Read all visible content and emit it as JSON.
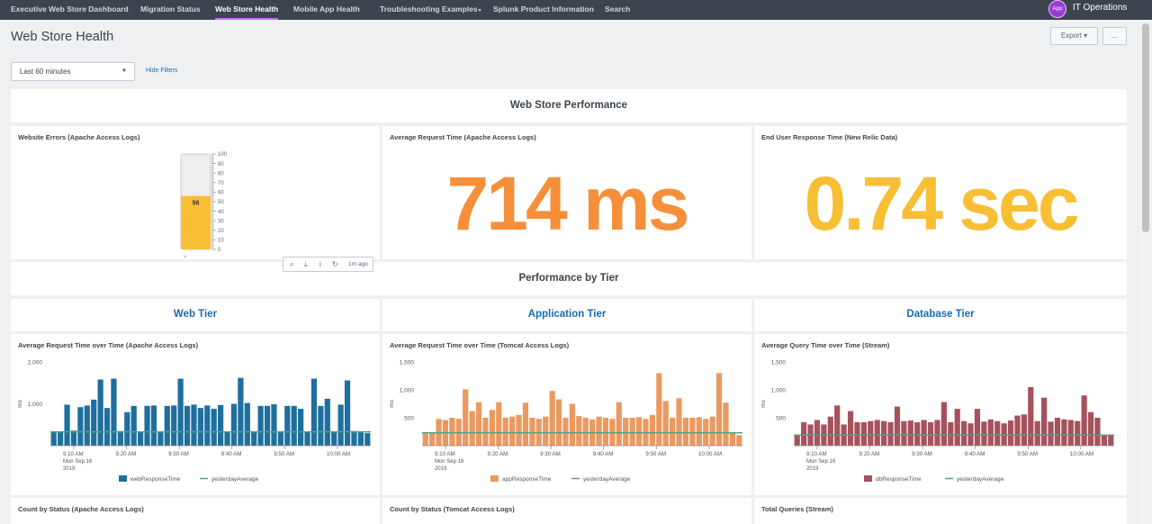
{
  "nav": {
    "items": [
      {
        "label": "Executive Web Store Dashboard",
        "caret": ""
      },
      {
        "label": "Migration Status",
        "caret": ""
      },
      {
        "label": "Web Store Health",
        "caret": ""
      },
      {
        "label": "Mobile App Health",
        "caret": ""
      },
      {
        "label": "Troubleshooting Examples",
        "caret": "▾"
      },
      {
        "label": "Splunk Product Information",
        "caret": ""
      },
      {
        "label": "Search",
        "caret": ""
      }
    ],
    "active_index": 2,
    "app_badge": "App",
    "app_name": "IT Operations"
  },
  "header": {
    "title": "Web Store Health",
    "export_label": "Export ▾",
    "more_label": "..."
  },
  "filters": {
    "time_range": "Last 60 minutes",
    "hide_filters": "Hide Filters"
  },
  "sections": {
    "performance": "Web Store Performance",
    "by_tier": "Performance by Tier"
  },
  "panels": {
    "website_errors": {
      "title": "Website Errors (Apache Access Logs)",
      "value": "56",
      "gauge_value": 56,
      "gauge_max": 100,
      "ticks": [
        "100",
        "90",
        "80",
        "70",
        "60",
        "50",
        "40",
        "30",
        "20",
        "10",
        "0"
      ],
      "fill_color": "#f8be34"
    },
    "avg_request_time": {
      "title": "Average Request Time (Apache Access Logs)",
      "value": "714 ms",
      "color": "#f58f39"
    },
    "end_user_response": {
      "title": "End User Response Time (New Relic Data)",
      "value": "0.74 sec",
      "color": "#f8be34"
    },
    "toolbar": {
      "icons": [
        "search-icon",
        "export-icon",
        "info-icon",
        "refresh-icon"
      ],
      "ago": "1m ago"
    },
    "counts": {
      "web": "Count by Status (Apache Access Logs)",
      "app": "Count by Status (Tomcat Access Logs)",
      "db": "Total Queries (Stream)"
    }
  },
  "tiers": {
    "web": "Web Tier",
    "app": "Application Tier",
    "db": "Database Tier"
  },
  "chart_data": [
    {
      "type": "bar",
      "title": "Average Request Time over Time (Apache Access Logs)",
      "ylabel": "ms",
      "ylim": [
        0,
        2000
      ],
      "yticks": [
        "1,000",
        "2,000"
      ],
      "ytick_values": [
        1000,
        2000
      ],
      "xticks": [
        "9:10 AM",
        "9:20 AM",
        "9:30 AM",
        "9:40 AM",
        "9:50 AM",
        "10:00 AM"
      ],
      "xtick_sub": [
        "Mon Sep 16",
        "2019"
      ],
      "bar_color": "#1e6f9f",
      "line_color": "#4fa484",
      "series_name": "webResponseTime",
      "line_name": "yesterdayAverage",
      "line_value": 330,
      "values": [
        340,
        330,
        980,
        360,
        920,
        960,
        1100,
        1580,
        900,
        1600,
        350,
        800,
        950,
        330,
        950,
        960,
        330,
        950,
        960,
        1600,
        950,
        980,
        900,
        960,
        880,
        970,
        330,
        1000,
        1620,
        1020,
        330,
        950,
        950,
        990,
        330,
        950,
        950,
        880,
        330,
        1600,
        950,
        1120,
        330,
        980,
        1560,
        350,
        320,
        300
      ]
    },
    {
      "type": "bar",
      "title": "Average Request Time over Time (Tomcat Access Logs)",
      "ylabel": "ms",
      "ylim": [
        0,
        1500
      ],
      "yticks": [
        "500",
        "1,000",
        "1,500"
      ],
      "ytick_values": [
        500,
        1000,
        1500
      ],
      "xticks": [
        "9:10 AM",
        "9:20 AM",
        "9:30 AM",
        "9:40 AM",
        "9:50 AM",
        "10:00 AM"
      ],
      "xtick_sub": [
        "Mon Sep 16",
        "2019"
      ],
      "bar_color": "#ec9960",
      "line_color": "#4fa484",
      "series_name": "appResponseTime",
      "line_name": "yesterdayAverage",
      "line_value": 230,
      "values": [
        230,
        240,
        480,
        460,
        500,
        480,
        1010,
        620,
        780,
        500,
        640,
        780,
        500,
        520,
        550,
        770,
        500,
        480,
        520,
        980,
        830,
        500,
        750,
        530,
        500,
        470,
        520,
        500,
        480,
        780,
        500,
        500,
        510,
        480,
        550,
        1300,
        800,
        500,
        850,
        500,
        500,
        510,
        480,
        520,
        1300,
        770,
        220,
        190
      ]
    },
    {
      "type": "bar",
      "title": "Average Query Time over Time (Stream)",
      "ylabel": "ms",
      "ylim": [
        0,
        1500
      ],
      "yticks": [
        "500",
        "1,000",
        "1,500"
      ],
      "ytick_values": [
        500,
        1000,
        1500
      ],
      "xticks": [
        "9:10 AM",
        "9:20 AM",
        "9:30 AM",
        "9:40 AM",
        "9:50 AM",
        "10:00 AM"
      ],
      "xtick_sub": [
        "Mon Sep 16",
        "2019"
      ],
      "bar_color": "#a6525c",
      "line_color": "#4fa484",
      "series_name": "dbResponseTime",
      "line_name": "yesterdayAverage",
      "line_value": 190,
      "values": [
        200,
        420,
        380,
        460,
        380,
        520,
        720,
        380,
        620,
        420,
        420,
        440,
        460,
        440,
        420,
        700,
        440,
        450,
        420,
        460,
        420,
        460,
        780,
        420,
        660,
        440,
        400,
        660,
        430,
        470,
        440,
        400,
        450,
        540,
        560,
        1050,
        440,
        860,
        430,
        500,
        470,
        460,
        440,
        900,
        600,
        500,
        200,
        180
      ]
    }
  ]
}
